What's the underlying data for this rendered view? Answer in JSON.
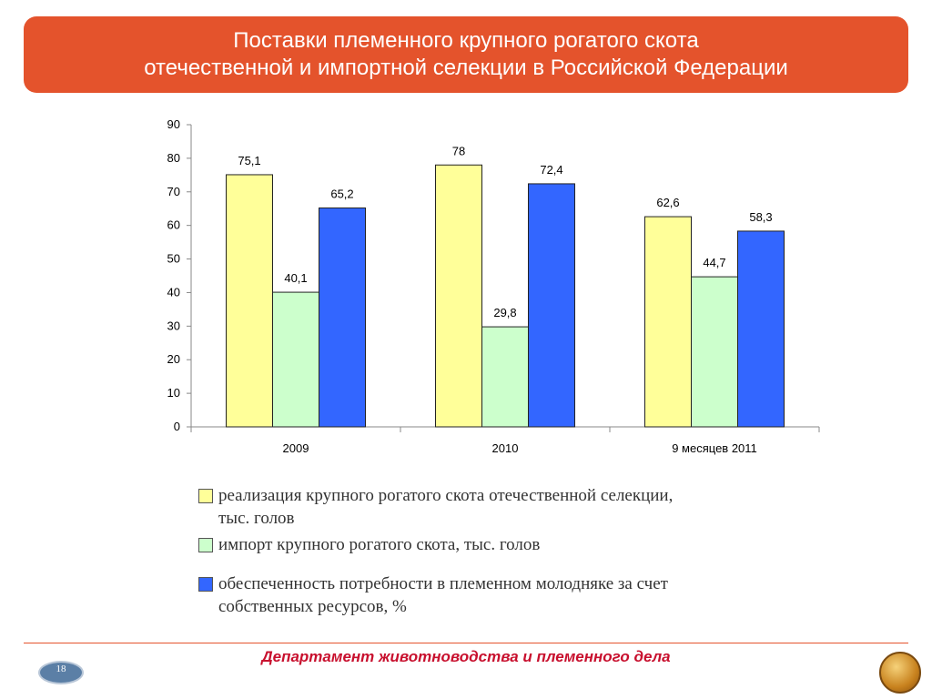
{
  "header": {
    "title_line1": "Поставки племенного крупного рогатого скота",
    "title_line2": "отечественной и импортной селекции в Российской Федерации"
  },
  "chart_data": {
    "type": "bar",
    "categories": [
      "2009",
      "2010",
      "9 месяцев 2011"
    ],
    "series": [
      {
        "name": "реализация крупного рогатого скота отечественной селекции, тыс. голов",
        "values": [
          75.1,
          78,
          62.6
        ],
        "labels": [
          "75,1",
          "78",
          "62,6"
        ],
        "color": "#ffff99"
      },
      {
        "name": "импорт крупного рогатого скота, тыс. голов",
        "values": [
          40.1,
          29.8,
          44.7
        ],
        "labels": [
          "40,1",
          "29,8",
          "44,7"
        ],
        "color": "#ccffcc"
      },
      {
        "name": "обеспеченность потребности в племенном молодняке за счет собственных ресурсов, %",
        "values": [
          65.2,
          72.4,
          58.3
        ],
        "labels": [
          "65,2",
          "72,4",
          "58,3"
        ],
        "color": "#3366ff"
      }
    ],
    "ylim": [
      0,
      90
    ],
    "yticks": [
      0,
      10,
      20,
      30,
      40,
      50,
      60,
      70,
      80,
      90
    ],
    "legend_position": "bottom",
    "grid": false
  },
  "legend": {
    "item1_line1": "реализация крупного рогатого скота отечественной селекции,",
    "item1_line2": "тыс. голов",
    "item2": "импорт крупного рогатого скота, тыс. голов",
    "item3_line1": "обеспеченность потребности в племенном молодняке за счет",
    "item3_line2": "собственных ресурсов, %"
  },
  "footer": {
    "department": "Департамент животноводства и племенного дела",
    "page_number": "18"
  }
}
